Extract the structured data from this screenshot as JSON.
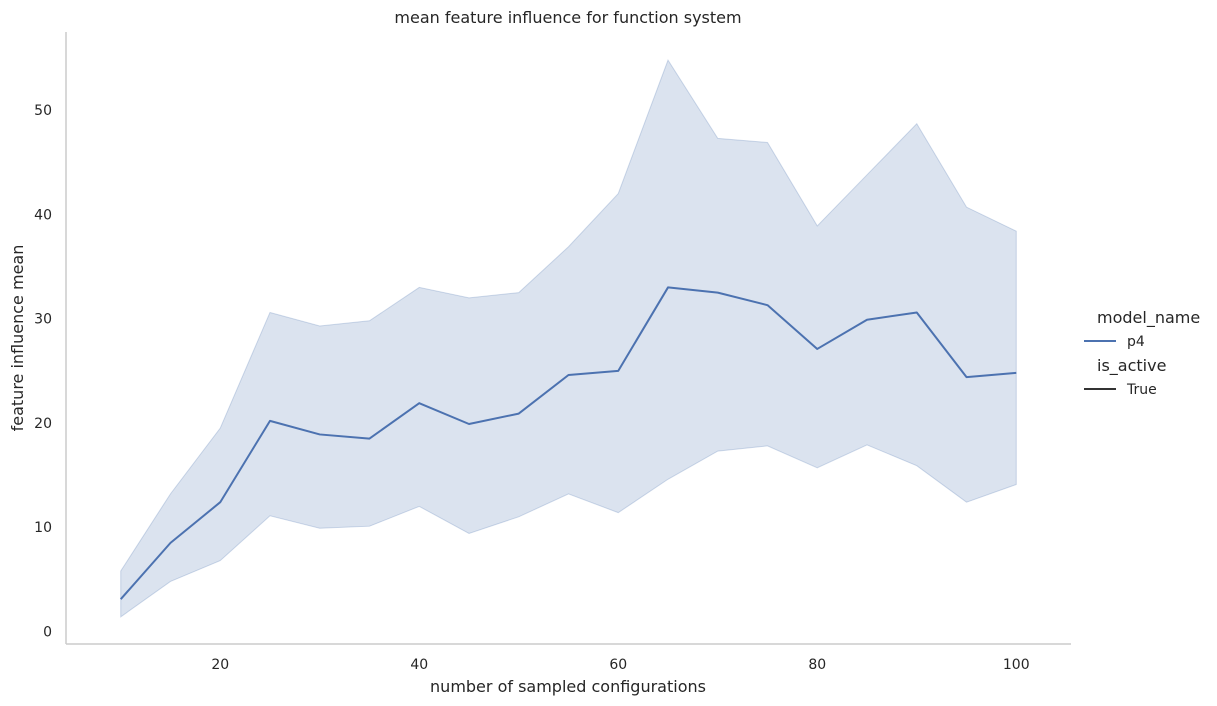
{
  "chart_data": {
    "type": "line",
    "title": "mean feature influence for function system",
    "xlabel": "number of sampled configurations",
    "ylabel": "feature influence mean",
    "xlim": [
      4.5,
      105.5
    ],
    "ylim": [
      -1.2,
      57.5
    ],
    "xticks": [
      20,
      40,
      60,
      80,
      100
    ],
    "yticks": [
      0,
      10,
      20,
      30,
      40,
      50
    ],
    "grid": false,
    "legend_position": "right",
    "x": [
      10,
      15,
      20,
      25,
      30,
      35,
      40,
      45,
      50,
      55,
      60,
      65,
      70,
      75,
      80,
      85,
      90,
      95,
      100
    ],
    "series": [
      {
        "name": "p4",
        "values": [
          3.1,
          8.5,
          12.4,
          20.2,
          18.9,
          18.5,
          21.9,
          19.9,
          20.9,
          24.6,
          25.0,
          33.0,
          32.5,
          31.3,
          27.1,
          29.9,
          30.6,
          24.4,
          24.8
        ],
        "ci_upper": [
          5.8,
          13.2,
          19.5,
          30.6,
          29.3,
          29.8,
          33.0,
          32.0,
          32.5,
          36.9,
          42.0,
          54.8,
          47.3,
          46.9,
          38.9,
          43.8,
          48.7,
          40.7,
          38.4
        ],
        "ci_lower": [
          1.4,
          4.8,
          6.8,
          11.1,
          9.9,
          10.1,
          12.0,
          9.4,
          11.0,
          13.2,
          11.4,
          14.6,
          17.3,
          17.8,
          15.7,
          17.9,
          15.9,
          12.4,
          14.1
        ]
      }
    ],
    "legend": {
      "title1": "model_name",
      "entry1": "p4",
      "title2": "is_active",
      "entry2": "True"
    },
    "colors": {
      "line": "#4c72b0",
      "band": "#4c72b0",
      "axis": "#cccccc",
      "text": "#262626",
      "legend_style_line": "#333333"
    }
  }
}
